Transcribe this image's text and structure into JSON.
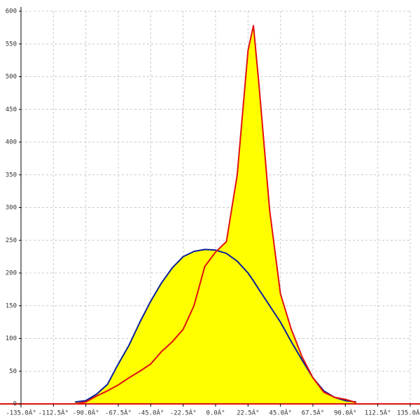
{
  "chart_data": {
    "type": "area",
    "x": [
      -97.5,
      -90,
      -82.5,
      -75,
      -67.5,
      -60,
      -52.5,
      -45,
      -37.5,
      -30,
      -22.5,
      -15,
      -7.5,
      0,
      7.5,
      15,
      22.5,
      26.25,
      30,
      37.5,
      45,
      52.5,
      60,
      67.5,
      75,
      82.5,
      90,
      97.5
    ],
    "fill": "#ffff00",
    "series": [
      {
        "name": "blue",
        "color": "#0a1e9a",
        "values": [
          3,
          5,
          15,
          30,
          61,
          90,
          125,
          157,
          185,
          208,
          225,
          233,
          236,
          235,
          230,
          218,
          200,
          188,
          175,
          150,
          125,
          95,
          67,
          40,
          20,
          10,
          5,
          3
        ]
      },
      {
        "name": "red",
        "color": "#e01010",
        "values": [
          0,
          3,
          12,
          20,
          29,
          40,
          50,
          61,
          80,
          95,
          114,
          150,
          210,
          232,
          248,
          350,
          540,
          578,
          490,
          296,
          168,
          114,
          72,
          40,
          18,
          10,
          7,
          2
        ]
      }
    ],
    "xlim": [
      -135,
      135
    ],
    "ylim": [
      0,
      600
    ],
    "xticks": [
      {
        "value": -135,
        "label": "-135.0Â°"
      },
      {
        "value": -112.5,
        "label": "-112.5Â°"
      },
      {
        "value": -90,
        "label": "-90.0Â°"
      },
      {
        "value": -67.5,
        "label": "-67.5Â°"
      },
      {
        "value": -45,
        "label": "-45.0Â°"
      },
      {
        "value": -22.5,
        "label": "-22.5Â°"
      },
      {
        "value": 0,
        "label": "0.0Â°"
      },
      {
        "value": 22.5,
        "label": "22.5Â°"
      },
      {
        "value": 45,
        "label": "45.0Â°"
      },
      {
        "value": 67.5,
        "label": "67.5Â°"
      },
      {
        "value": 90,
        "label": "90.0Â°"
      },
      {
        "value": 112.5,
        "label": "112.5Â°"
      },
      {
        "value": 135,
        "label": "135.0Â°"
      }
    ],
    "yticks": [
      0,
      50,
      100,
      150,
      200,
      250,
      300,
      350,
      400,
      450,
      500,
      550,
      600
    ],
    "grid": true
  }
}
